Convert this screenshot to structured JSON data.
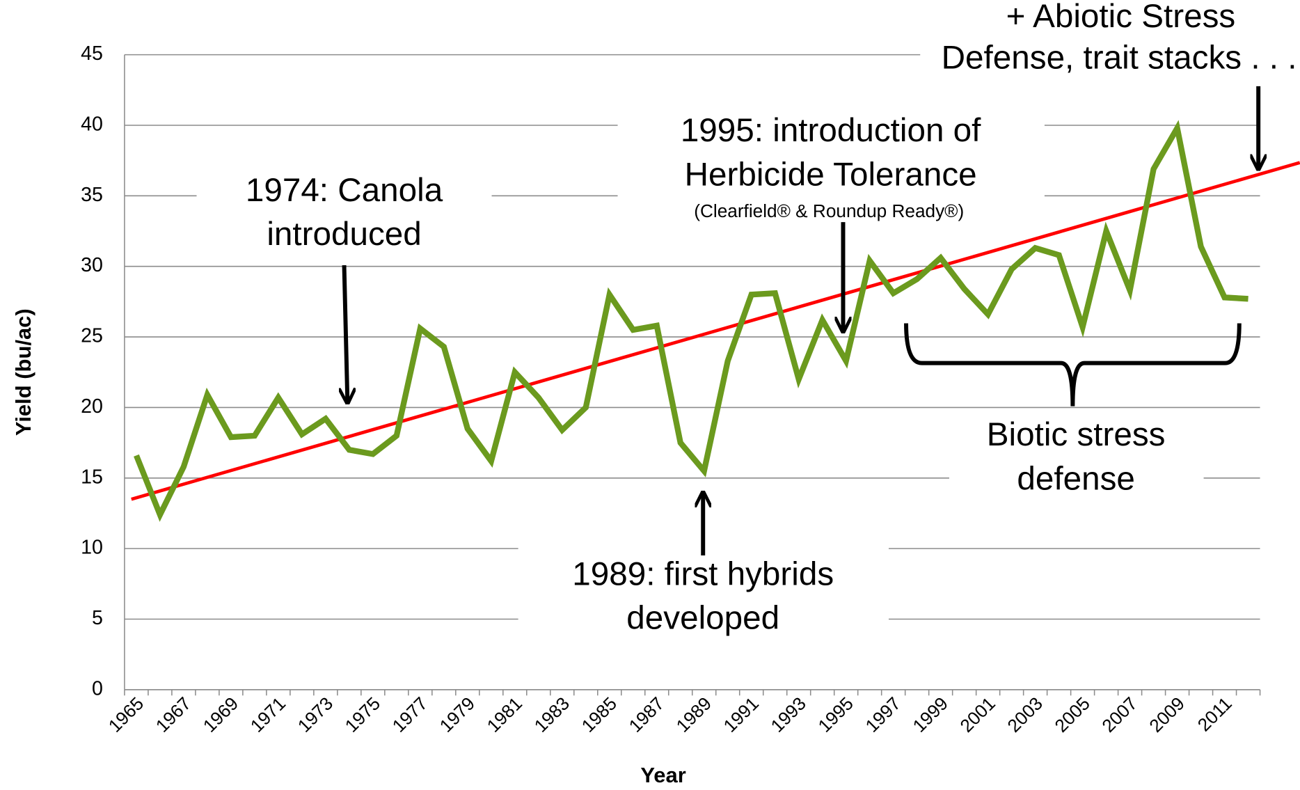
{
  "chart_data": {
    "type": "line",
    "y_label": "Yield (bu/ac)",
    "x_label": "Year",
    "categories": [
      "1965",
      null,
      "1967",
      null,
      "1969",
      null,
      "1971",
      null,
      "1973",
      null,
      "1975",
      null,
      "1977",
      null,
      "1979",
      null,
      "1981",
      null,
      "1983",
      null,
      "1985",
      null,
      "1987",
      null,
      "1989",
      null,
      "1991",
      null,
      "1993",
      null,
      "1995",
      null,
      "1997",
      null,
      "1999",
      null,
      "2001",
      null,
      "2003",
      null,
      "2005",
      null,
      "2007",
      null,
      "2009",
      null,
      "2011",
      null
    ],
    "series": [
      {
        "color": "#6b9a1e",
        "values": [
          16.6,
          12.4,
          15.8,
          20.9,
          17.9,
          18.0,
          20.7,
          18.1,
          19.2,
          17.0,
          16.7,
          18.0,
          25.6,
          24.3,
          18.5,
          16.2,
          22.5,
          20.7,
          18.4,
          20.0,
          28.0,
          25.5,
          25.8,
          17.5,
          15.5,
          23.3,
          28.0,
          28.1,
          22.0,
          26.2,
          23.3,
          30.4,
          28.1,
          29.1,
          30.6,
          28.4,
          26.6,
          29.8,
          31.3,
          30.8,
          25.7,
          32.5,
          28.3,
          36.9,
          39.8,
          31.4,
          27.8,
          27.7
        ]
      }
    ],
    "trend": {
      "color": "#ff0000",
      "values": [
        13.6,
        36.3
      ]
    },
    "ylim": [
      0,
      45
    ],
    "yticks": [
      0,
      5,
      10,
      15,
      20,
      25,
      30,
      35,
      40,
      45
    ],
    "grid": true,
    "annotations": [
      {
        "lines": [
          "1974: Canola",
          "introduced"
        ]
      },
      {
        "lines": [
          "1995: introduction of",
          "Herbicide Tolerance"
        ],
        "note": "(Clearfield® & Roundup Ready®)"
      },
      {
        "lines": [
          "1989: first hybrids",
          "developed"
        ]
      },
      {
        "lines": [
          "+ Abiotic Stress",
          "Defense, trait stacks . . ."
        ]
      },
      {
        "lines": [
          "Biotic stress",
          "defense"
        ]
      }
    ]
  }
}
